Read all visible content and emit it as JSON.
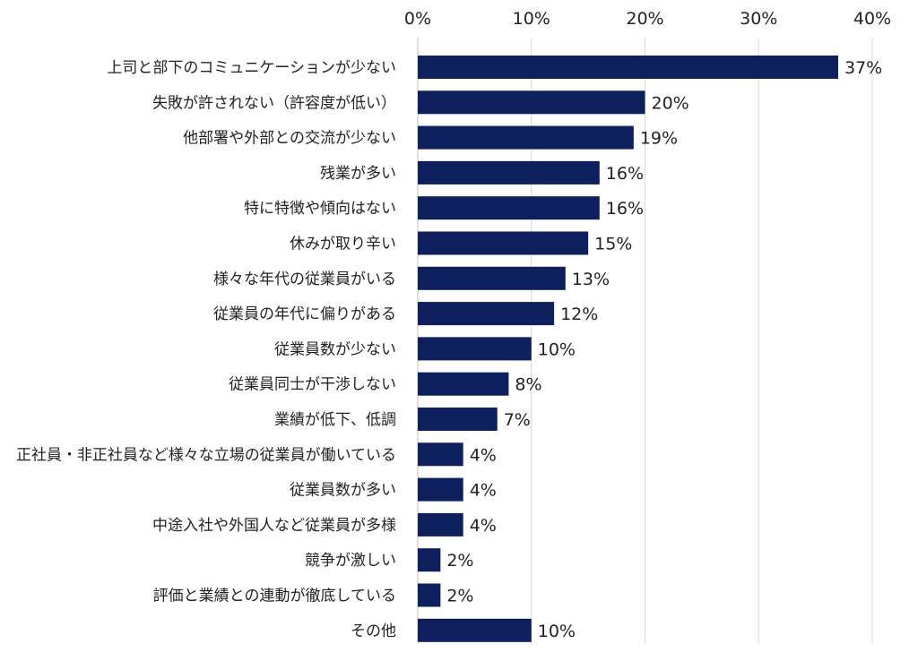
{
  "chart_data": {
    "type": "bar",
    "orientation": "horizontal",
    "categories": [
      "上司と部下のコミュニケーションが少ない",
      "失敗が許されない（許容度が低い）",
      "他部署や外部との交流が少ない",
      "残業が多い",
      "特に特徴や傾向はない",
      "休みが取り辛い",
      "様々な年代の従業員がいる",
      "従業員の年代に偏りがある",
      "従業員数が少ない",
      "従業員同士が干渉しない",
      "業績が低下、低調",
      "正社員・非正社員など様々な立場の従業員が働いている",
      "従業員数が多い",
      "中途入社や外国人など従業員が多様",
      "競争が激しい",
      "評価と業績との連動が徹底している",
      "その他"
    ],
    "values": [
      37,
      20,
      19,
      16,
      16,
      15,
      13,
      12,
      10,
      8,
      7,
      4,
      4,
      4,
      2,
      2,
      10
    ],
    "value_labels": [
      "37%",
      "20%",
      "19%",
      "16%",
      "16%",
      "15%",
      "13%",
      "12%",
      "10%",
      "8%",
      "7%",
      "4%",
      "4%",
      "4%",
      "2%",
      "2%",
      "10%"
    ],
    "xlim": [
      0,
      40
    ],
    "x_ticks": [
      0,
      10,
      20,
      30,
      40
    ],
    "x_tick_labels": [
      "0%",
      "10%",
      "20%",
      "30%",
      "40%"
    ],
    "x_axis_position": "top",
    "grid": true,
    "bar_color": "#0d1f5c"
  }
}
